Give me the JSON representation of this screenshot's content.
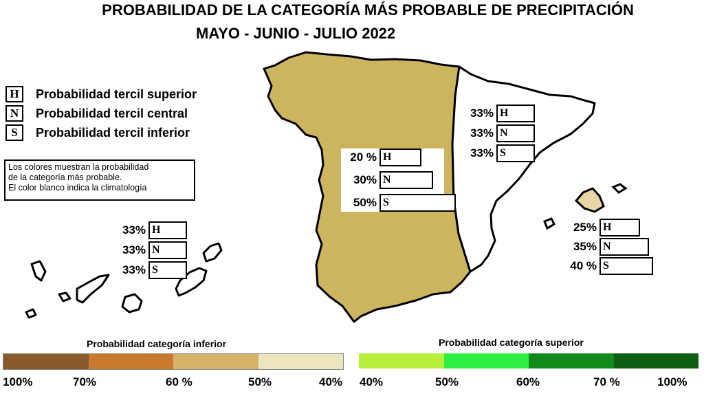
{
  "title": "PROBABILIDAD DE LA  CATEGORÍA MÁS PROBABLE DE PRECIPITACIÓN",
  "subtitle": "MAYO - JUNIO - JULIO 2022",
  "legend": [
    {
      "letter": "H",
      "label": "Probabilidad  tercil superior"
    },
    {
      "letter": "N",
      "label": "Probabilidad  tercil central"
    },
    {
      "letter": "S",
      "label": "Probabilidad  tercil inferior"
    }
  ],
  "note": [
    "Los colores muestran la probabilidad",
    "de la categoría más probable.",
    "El color blanco indica la climatología"
  ],
  "regions": {
    "west": {
      "name": "Western peninsula",
      "fill_color": "#cdb45f",
      "probabilities": [
        {
          "pct": "20 %",
          "letter": "H",
          "value": 20
        },
        {
          "pct": "30%",
          "letter": "N",
          "value": 30
        },
        {
          "pct": "50%",
          "letter": "S",
          "value": 50
        }
      ]
    },
    "east": {
      "name": "Eastern peninsula",
      "fill_color": "#ffffff",
      "probabilities": [
        {
          "pct": "33%",
          "letter": "H",
          "value": 33
        },
        {
          "pct": "33%",
          "letter": "N",
          "value": 33
        },
        {
          "pct": "33%",
          "letter": "S",
          "value": 33
        }
      ]
    },
    "canarias": {
      "name": "Canary Islands",
      "fill_color": "#ffffff",
      "probabilities": [
        {
          "pct": "33%",
          "letter": "H",
          "value": 33
        },
        {
          "pct": "33%",
          "letter": "N",
          "value": 33
        },
        {
          "pct": "33%",
          "letter": "S",
          "value": 33
        }
      ]
    },
    "baleares": {
      "name": "Balearic Islands",
      "fill_color": "#ffffff",
      "highlight_color": "#e8d5a8",
      "probabilities": [
        {
          "pct": "25%",
          "letter": "H",
          "value": 25
        },
        {
          "pct": "35%",
          "letter": "N",
          "value": 35
        },
        {
          "pct": "40 %",
          "letter": "S",
          "value": 40
        }
      ]
    }
  },
  "scale_inferior": {
    "title": "Probabilidad categoría inferior",
    "colors": [
      "#8b5a2b",
      "#c87a2e",
      "#d7b26a",
      "#ebe6bf"
    ],
    "ticks": [
      "100%",
      "70%",
      "60 %",
      "50%",
      "40%"
    ]
  },
  "scale_superior": {
    "title": "Probabilidad categoría superior",
    "colors": [
      "#b8ef3a",
      "#2ef043",
      "#128a1a",
      "#0e5e12"
    ],
    "ticks": [
      "40%",
      "50%",
      "60%",
      "70 %",
      "100%"
    ]
  }
}
